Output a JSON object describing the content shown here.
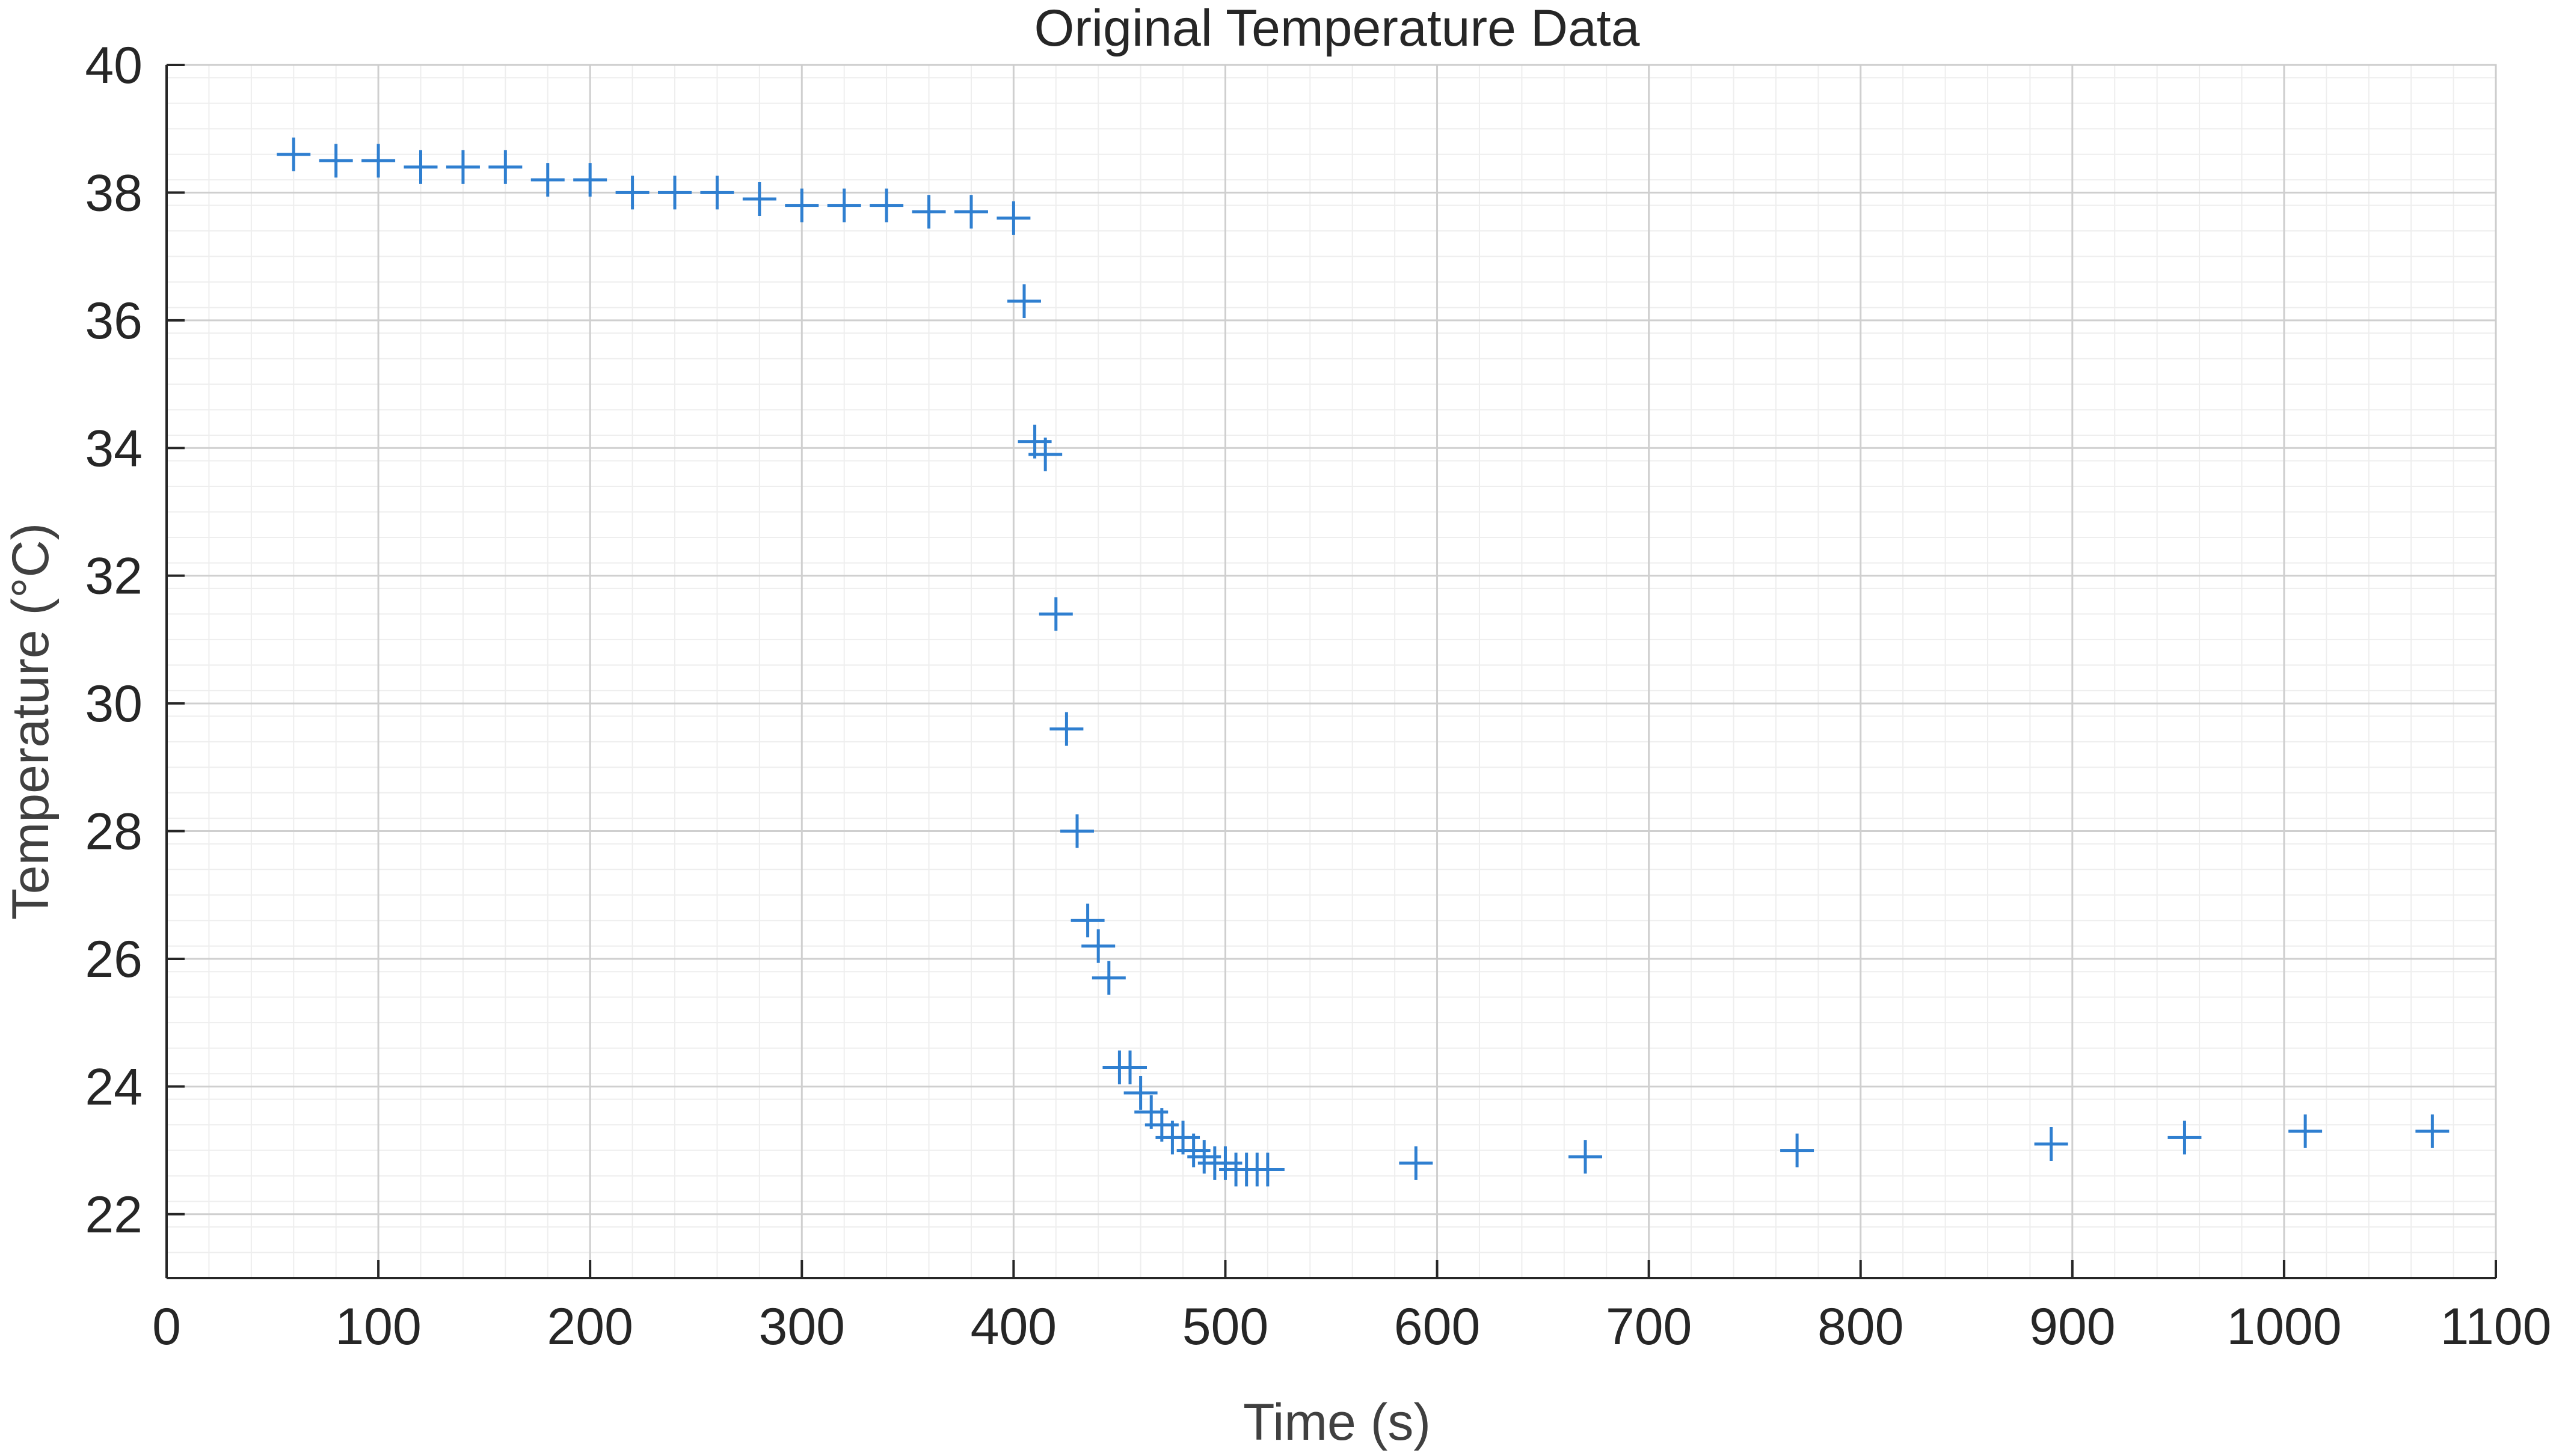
{
  "chart_data": {
    "type": "scatter",
    "title": "Original Temperature Data",
    "xlabel": "Time (s)",
    "ylabel": "Temperature (°C)",
    "xlim": [
      0,
      1100
    ],
    "ylim": [
      21,
      40
    ],
    "xticks": [
      0,
      100,
      200,
      300,
      400,
      500,
      600,
      700,
      800,
      900,
      1000,
      1100
    ],
    "yticks": [
      22,
      24,
      26,
      28,
      30,
      32,
      34,
      36,
      38,
      40
    ],
    "grid": true,
    "minor_grid": true,
    "marker": "+",
    "color": "#2f7fd0",
    "series": [
      {
        "x": [
          60,
          80,
          100,
          120,
          140,
          160,
          180,
          200,
          220,
          240,
          260,
          280,
          300,
          320,
          340,
          360,
          380,
          400,
          405,
          410,
          415,
          420,
          425,
          430,
          435,
          440,
          445,
          450,
          455,
          460,
          465,
          470,
          475,
          480,
          485,
          490,
          495,
          500,
          505,
          510,
          515,
          520,
          590,
          670,
          770,
          890,
          953,
          1010,
          1070
        ],
        "y": [
          38.6,
          38.5,
          38.5,
          38.4,
          38.4,
          38.4,
          38.2,
          38.2,
          38.0,
          38.0,
          38.0,
          37.9,
          37.8,
          37.8,
          37.8,
          37.7,
          37.7,
          37.6,
          36.3,
          34.1,
          33.9,
          31.4,
          29.6,
          28.0,
          26.6,
          26.2,
          25.7,
          24.3,
          24.3,
          23.9,
          23.6,
          23.4,
          23.2,
          23.2,
          23.0,
          22.9,
          22.8,
          22.8,
          22.7,
          22.7,
          22.7,
          22.7,
          22.8,
          22.9,
          23.0,
          23.1,
          23.2,
          23.3,
          23.3
        ]
      }
    ]
  }
}
